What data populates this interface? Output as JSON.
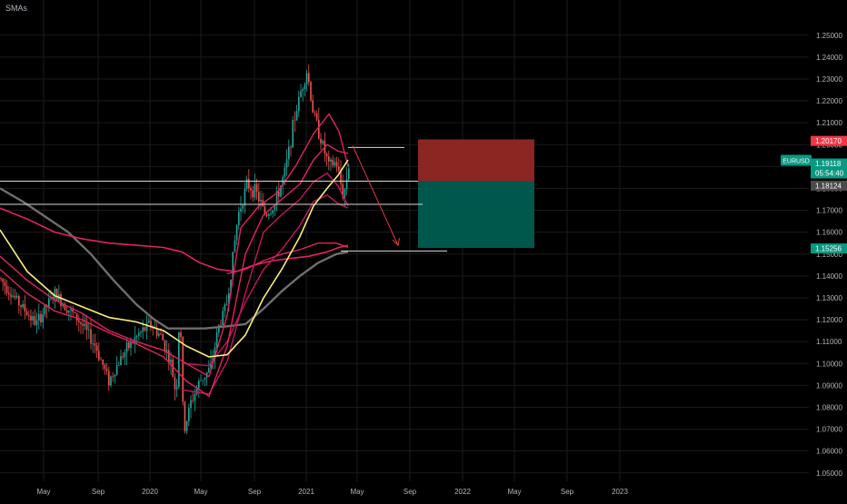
{
  "indicator_label": "SMAs",
  "colors": {
    "background": "#000000",
    "grid": "#1b1b1b",
    "axis_text": "#b2b5be",
    "candle_up": "#26a69a",
    "candle_down": "#ef5350",
    "sma_yellow": "#f7ef79",
    "sma_red": "#e0245e",
    "sma_red_dark": "#c2185b",
    "sma_gray": "#6e6e6e",
    "stop_zone": "#8b2622",
    "target_zone": "#00574b",
    "level_line": "#d9d9d9",
    "arrow": "#e63946",
    "badge_red": "#f23645",
    "badge_teal": "#089981",
    "badge_gray": "#4a4a4a"
  },
  "chart_data": {
    "type": "candlestick",
    "symbol": "EURUSD",
    "title": "SMAs",
    "ylim": [
      1.045,
      1.254
    ],
    "y_ticks": [
      "1.25000",
      "1.24000",
      "1.23000",
      "1.22000",
      "1.21000",
      "1.20000",
      "1.19000",
      "1.18000",
      "1.17000",
      "1.16000",
      "1.15000",
      "1.14000",
      "1.13000",
      "1.12000",
      "1.11000",
      "1.10000",
      "1.09000",
      "1.08000",
      "1.07000",
      "1.06000",
      "1.05000"
    ],
    "x_ticks": [
      "May",
      "Sep",
      "2020",
      "May",
      "Sep",
      "2021",
      "May",
      "Sep",
      "2022",
      "May",
      "Sep",
      "2023"
    ],
    "price_path": [
      [
        0,
        1.139
      ],
      [
        20,
        1.128
      ],
      [
        40,
        1.118
      ],
      [
        60,
        1.132
      ],
      [
        75,
        1.125
      ],
      [
        90,
        1.118
      ],
      [
        105,
        1.108
      ],
      [
        120,
        1.092
      ],
      [
        135,
        1.104
      ],
      [
        150,
        1.112
      ],
      [
        165,
        1.118
      ],
      [
        178,
        1.112
      ],
      [
        188,
        1.1
      ],
      [
        194,
        1.085
      ],
      [
        198,
        1.128
      ],
      [
        202,
        1.068
      ],
      [
        210,
        1.082
      ],
      [
        220,
        1.092
      ],
      [
        232,
        1.098
      ],
      [
        240,
        1.116
      ],
      [
        250,
        1.128
      ],
      [
        262,
        1.168
      ],
      [
        272,
        1.182
      ],
      [
        282,
        1.178
      ],
      [
        292,
        1.168
      ],
      [
        302,
        1.172
      ],
      [
        314,
        1.188
      ],
      [
        324,
        1.212
      ],
      [
        332,
        1.226
      ],
      [
        338,
        1.234
      ],
      [
        344,
        1.216
      ],
      [
        352,
        1.204
      ],
      [
        362,
        1.19
      ],
      [
        370,
        1.192
      ],
      [
        378,
        1.176
      ],
      [
        384,
        1.191
      ]
    ],
    "sma_yellow": [
      [
        0,
        1.161
      ],
      [
        30,
        1.142
      ],
      [
        60,
        1.131
      ],
      [
        90,
        1.126
      ],
      [
        120,
        1.121
      ],
      [
        150,
        1.119
      ],
      [
        180,
        1.115
      ],
      [
        205,
        1.108
      ],
      [
        230,
        1.103
      ],
      [
        250,
        1.104
      ],
      [
        270,
        1.113
      ],
      [
        290,
        1.13
      ],
      [
        310,
        1.143
      ],
      [
        330,
        1.158
      ],
      [
        345,
        1.172
      ],
      [
        360,
        1.18
      ],
      [
        372,
        1.186
      ],
      [
        383,
        1.193
      ]
    ],
    "sma_red_a": [
      [
        0,
        1.149
      ],
      [
        30,
        1.138
      ],
      [
        60,
        1.129
      ],
      [
        90,
        1.123
      ],
      [
        120,
        1.115
      ],
      [
        150,
        1.11
      ],
      [
        180,
        1.106
      ],
      [
        205,
        1.1
      ],
      [
        230,
        1.094
      ],
      [
        250,
        1.122
      ],
      [
        265,
        1.162
      ],
      [
        285,
        1.172
      ],
      [
        305,
        1.178
      ],
      [
        325,
        1.19
      ],
      [
        345,
        1.205
      ],
      [
        362,
        1.214
      ],
      [
        373,
        1.206
      ],
      [
        383,
        1.19
      ]
    ],
    "sma_red_b": [
      [
        0,
        1.143
      ],
      [
        30,
        1.132
      ],
      [
        60,
        1.124
      ],
      [
        90,
        1.12
      ],
      [
        120,
        1.114
      ],
      [
        150,
        1.109
      ],
      [
        180,
        1.103
      ],
      [
        205,
        1.092
      ],
      [
        230,
        1.085
      ],
      [
        250,
        1.108
      ],
      [
        270,
        1.15
      ],
      [
        290,
        1.168
      ],
      [
        310,
        1.175
      ],
      [
        330,
        1.182
      ],
      [
        345,
        1.193
      ],
      [
        360,
        1.2
      ],
      [
        372,
        1.197
      ],
      [
        383,
        1.196
      ]
    ],
    "sma_red_c": [
      [
        200,
        1.088
      ],
      [
        230,
        1.086
      ],
      [
        250,
        1.101
      ],
      [
        270,
        1.132
      ],
      [
        290,
        1.16
      ],
      [
        310,
        1.168
      ],
      [
        330,
        1.175
      ],
      [
        345,
        1.183
      ],
      [
        360,
        1.187
      ],
      [
        372,
        1.181
      ],
      [
        383,
        1.172
      ]
    ],
    "sma_red_d": [
      [
        200,
        1.1
      ],
      [
        230,
        1.099
      ],
      [
        250,
        1.11
      ],
      [
        270,
        1.128
      ],
      [
        290,
        1.143
      ],
      [
        310,
        1.152
      ],
      [
        330,
        1.163
      ],
      [
        345,
        1.174
      ],
      [
        360,
        1.177
      ],
      [
        372,
        1.173
      ],
      [
        383,
        1.171
      ]
    ],
    "sma_red_long": [
      [
        0,
        1.171
      ],
      [
        30,
        1.166
      ],
      [
        60,
        1.16
      ],
      [
        90,
        1.157
      ],
      [
        120,
        1.155
      ],
      [
        150,
        1.154
      ],
      [
        180,
        1.153
      ],
      [
        200,
        1.151
      ],
      [
        220,
        1.146
      ],
      [
        240,
        1.143
      ],
      [
        260,
        1.142
      ],
      [
        280,
        1.145
      ],
      [
        300,
        1.147
      ],
      [
        320,
        1.148
      ],
      [
        340,
        1.149
      ],
      [
        360,
        1.151
      ],
      [
        373,
        1.153
      ],
      [
        383,
        1.154
      ]
    ],
    "sma_red_long2": [
      [
        250,
        1.141
      ],
      [
        270,
        1.143
      ],
      [
        290,
        1.147
      ],
      [
        310,
        1.15
      ],
      [
        330,
        1.152
      ],
      [
        350,
        1.155
      ],
      [
        370,
        1.155
      ],
      [
        383,
        1.153
      ]
    ],
    "sma_gray": [
      [
        0,
        1.18
      ],
      [
        25,
        1.174
      ],
      [
        50,
        1.167
      ],
      [
        75,
        1.16
      ],
      [
        100,
        1.15
      ],
      [
        125,
        1.138
      ],
      [
        150,
        1.127
      ],
      [
        170,
        1.12
      ],
      [
        185,
        1.116
      ],
      [
        200,
        1.116
      ],
      [
        225,
        1.116
      ],
      [
        250,
        1.117
      ],
      [
        270,
        1.118
      ],
      [
        290,
        1.125
      ],
      [
        310,
        1.133
      ],
      [
        330,
        1.14
      ],
      [
        350,
        1.146
      ],
      [
        370,
        1.15
      ],
      [
        383,
        1.151
      ]
    ],
    "levels": [
      {
        "price": 1.1833,
        "x0": 0,
        "x1": 460
      },
      {
        "price": 1.1727,
        "x0": 0,
        "x1": 465
      },
      {
        "price": 1.1987,
        "x0": 383,
        "x1": 445
      },
      {
        "price": 1.1514,
        "x0": 375,
        "x1": 492
      }
    ],
    "position": {
      "entry": 1.1833,
      "stop": 1.2024,
      "target": 1.1528
    },
    "forecast_arrow": {
      "from_price": 1.1995,
      "to_price": 1.154
    },
    "price_badges": [
      {
        "label": "1.20170",
        "price": 1.2017,
        "kind": "red"
      },
      {
        "label": "EURUSD",
        "kind": "symbol"
      },
      {
        "label": "1.19118",
        "price": 1.19118,
        "kind": "teal",
        "countdown": "05:54:40"
      },
      {
        "label": "1.18124",
        "price": 1.18124,
        "kind": "gray"
      },
      {
        "label": "1.15256",
        "price": 1.15256,
        "kind": "teal"
      }
    ]
  }
}
